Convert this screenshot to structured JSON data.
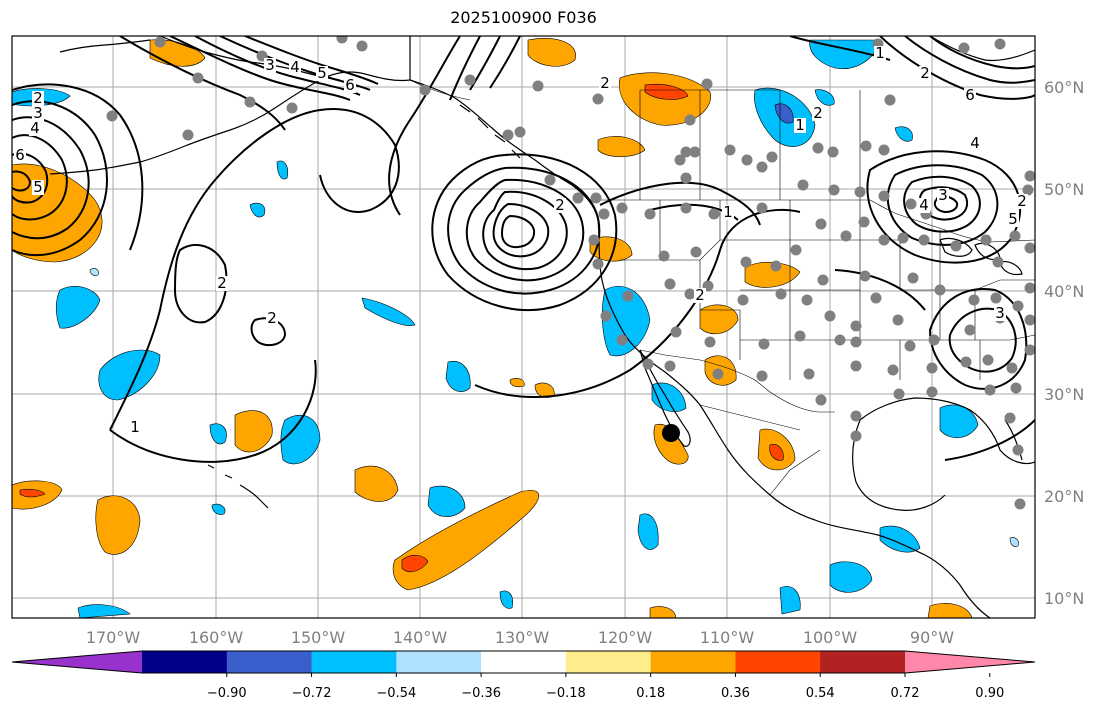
{
  "title": "2025100900 F036",
  "map": {
    "lon_labels": [
      "170°W",
      "160°W",
      "150°W",
      "140°W",
      "130°W",
      "120°W",
      "110°W",
      "100°W",
      "90°W"
    ],
    "lat_labels": [
      "60°N",
      "50°N",
      "40°N",
      "30°N",
      "20°N",
      "10°N"
    ],
    "colors": {
      "ocean": "#ffffff",
      "grid": "#aaaaaa",
      "coast": "#000000",
      "contour": "#000000",
      "station": "#808080",
      "marker": "#000000"
    }
  },
  "colorbar": {
    "tick_labels": [
      "−0.90",
      "−0.72",
      "−0.54",
      "−0.36",
      "−0.18",
      "0.18",
      "0.36",
      "0.54",
      "0.72",
      "0.90"
    ],
    "colors": [
      "#9932cc",
      "#00008b",
      "#3a5fcd",
      "#00bfff",
      "#b0e2ff",
      "#ffffff",
      "#ffec8b",
      "#ffa500",
      "#ff4500",
      "#b22222",
      "#ff88aa"
    ]
  },
  "contour_labels": [
    "3",
    "4",
    "5",
    "6",
    "2",
    "1",
    "2",
    "2",
    "6",
    "5",
    "4",
    "3",
    "2",
    "1",
    "2",
    "6",
    "4",
    "3",
    "2",
    "5",
    "4",
    "2",
    "1",
    "3",
    "2",
    "1",
    "2"
  ]
}
